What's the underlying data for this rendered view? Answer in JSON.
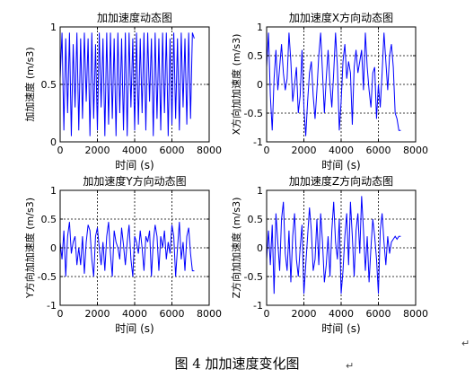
{
  "figure": {
    "caption": "图 4  加加速度变化图",
    "para_mark": "↵"
  },
  "chart_data": [
    {
      "type": "line",
      "title": "加加速度动态图",
      "xlabel": "时间 (s)",
      "ylabel": "加加速度 (m/s3)",
      "xlim": [
        0,
        8000
      ],
      "ylim": [
        0,
        1
      ],
      "xticks": [
        0,
        2000,
        4000,
        6000,
        8000
      ],
      "yticks": [
        0,
        0.5,
        1
      ],
      "tick_labels_x": [
        "0",
        "2000",
        "4000",
        "6000",
        "8000"
      ],
      "tick_labels_y": [
        "0",
        "0.5",
        "1"
      ],
      "grid": true,
      "line_color": "#0000ff",
      "series": [
        {
          "x": [
            0,
            100,
            200,
            300,
            400,
            500,
            600,
            700,
            800,
            900,
            1000,
            1100,
            1200,
            1300,
            1400,
            1500,
            1600,
            1700,
            1800,
            1900,
            2000,
            2100,
            2200,
            2300,
            2400,
            2500,
            2600,
            2700,
            2800,
            2900,
            3000,
            3100,
            3200,
            3300,
            3400,
            3500,
            3600,
            3700,
            3800,
            3900,
            4000,
            4100,
            4200,
            4300,
            4400,
            4500,
            4600,
            4700,
            4800,
            4900,
            5000,
            5100,
            5200,
            5300,
            5400,
            5500,
            5600,
            5700,
            5800,
            5900,
            6000,
            6100,
            6200,
            6300,
            6400,
            6500,
            6600,
            6700,
            6800,
            6900,
            7000,
            7100,
            7200
          ],
          "y": [
            0.55,
            0.95,
            0.1,
            0.9,
            0.25,
            0.95,
            0.05,
            0.85,
            0.3,
            0.95,
            0.1,
            0.9,
            0.2,
            0.95,
            0.35,
            0.9,
            0.05,
            0.95,
            0.2,
            0.85,
            0.1,
            0.95,
            0.3,
            0.9,
            0.05,
            0.95,
            0.15,
            0.95,
            0.2,
            0.9,
            0.05,
            0.95,
            0.25,
            0.9,
            0.1,
            0.95,
            0.05,
            0.95,
            0.3,
            0.9,
            0.1,
            0.95,
            0.15,
            0.9,
            0.25,
            0.95,
            0.1,
            0.95,
            0.35,
            0.9,
            0.05,
            0.95,
            0.2,
            0.9,
            0.1,
            0.95,
            0.25,
            0.95,
            0.05,
            0.9,
            0.15,
            0.95,
            0.2,
            0.9,
            0.1,
            0.95,
            0.3,
            0.9,
            0.15,
            0.95,
            0.2,
            0.95,
            0.9
          ]
        }
      ]
    },
    {
      "type": "line",
      "title": "加加速度X方向动态图",
      "xlabel": "时间 (s)",
      "ylabel": "X方向加加速度 (m/s3)",
      "xlim": [
        0,
        8000
      ],
      "ylim": [
        -1,
        1
      ],
      "xticks": [
        0,
        2000,
        4000,
        6000,
        8000
      ],
      "yticks": [
        -1,
        -0.5,
        0,
        0.5,
        1
      ],
      "tick_labels_x": [
        "0",
        "2000",
        "4000",
        "6000",
        "8000"
      ],
      "tick_labels_y": [
        "-1",
        "-0.5",
        "0",
        "0.5",
        "1"
      ],
      "grid": true,
      "line_color": "#0000ff",
      "series": [
        {
          "x": [
            0,
            100,
            200,
            300,
            400,
            500,
            600,
            700,
            800,
            900,
            1000,
            1100,
            1200,
            1300,
            1400,
            1500,
            1600,
            1700,
            1800,
            1900,
            2000,
            2100,
            2200,
            2300,
            2400,
            2500,
            2600,
            2700,
            2800,
            2900,
            3000,
            3100,
            3200,
            3300,
            3400,
            3500,
            3600,
            3700,
            3800,
            3900,
            4000,
            4100,
            4200,
            4300,
            4400,
            4500,
            4600,
            4700,
            4800,
            4900,
            5000,
            5100,
            5200,
            5300,
            5400,
            5500,
            5600,
            5700,
            5800,
            5900,
            6000,
            6100,
            6200,
            6300,
            6400,
            6500,
            6600,
            6700,
            6800,
            6900,
            7000,
            7100,
            7200
          ],
          "y": [
            0.3,
            0.9,
            -0.2,
            -0.8,
            0.1,
            0.6,
            -0.1,
            0.3,
            0.7,
            0.2,
            -0.1,
            0.1,
            0.9,
            0.4,
            -0.3,
            0.0,
            0.3,
            -0.5,
            -0.2,
            0.6,
            -0.4,
            -0.9,
            -0.3,
            0.2,
            0.4,
            -0.2,
            -0.6,
            -0.1,
            0.5,
            0.9,
            0.2,
            -0.5,
            0.1,
            0.6,
            0.0,
            -0.4,
            0.2,
            0.9,
            0.3,
            -0.8,
            -0.3,
            0.4,
            0.7,
            0.1,
            0.4,
            0.2,
            -0.7,
            0.3,
            0.6,
            0.2,
            0.4,
            0.6,
            -0.1,
            0.9,
            0.3,
            -0.1,
            -0.4,
            0.2,
            0.3,
            -0.6,
            0.0,
            -0.4,
            0.2,
            0.9,
            0.4,
            -0.1,
            0.5,
            0.7,
            0.3,
            -0.5,
            -0.6,
            -0.8,
            -0.8
          ]
        }
      ]
    },
    {
      "type": "line",
      "title": "加加速度Y方向动态图",
      "xlabel": "时间 (s)",
      "ylabel": "Y方向加加速度 (m/s3)",
      "xlim": [
        0,
        8000
      ],
      "ylim": [
        -1,
        1
      ],
      "xticks": [
        0,
        2000,
        4000,
        6000,
        8000
      ],
      "yticks": [
        -1,
        -0.5,
        0,
        0.5,
        1
      ],
      "tick_labels_x": [
        "0",
        "2000",
        "4000",
        "6000",
        "8000"
      ],
      "tick_labels_y": [
        "-1",
        "-0.5",
        "0",
        "0.5",
        "1"
      ],
      "grid": true,
      "line_color": "#0000ff",
      "series": [
        {
          "x": [
            0,
            100,
            200,
            300,
            400,
            500,
            600,
            700,
            800,
            900,
            1000,
            1100,
            1200,
            1300,
            1400,
            1500,
            1600,
            1700,
            1800,
            1900,
            2000,
            2100,
            2200,
            2300,
            2400,
            2500,
            2600,
            2700,
            2800,
            2900,
            3000,
            3100,
            3200,
            3300,
            3400,
            3500,
            3600,
            3700,
            3800,
            3900,
            4000,
            4100,
            4200,
            4300,
            4400,
            4500,
            4600,
            4700,
            4800,
            4900,
            5000,
            5100,
            5200,
            5300,
            5400,
            5500,
            5600,
            5700,
            5800,
            5900,
            6000,
            6100,
            6200,
            6300,
            6400,
            6500,
            6600,
            6700,
            6800,
            6900,
            7000,
            7100,
            7200
          ],
          "y": [
            0.1,
            -0.2,
            0.3,
            -0.5,
            0.2,
            0.45,
            -0.1,
            0.1,
            0.2,
            -0.3,
            0.0,
            -0.3,
            0.2,
            -0.45,
            0.1,
            0.4,
            0.3,
            -0.2,
            -0.5,
            0.2,
            0.35,
            0.0,
            -0.3,
            0.1,
            -0.4,
            0.2,
            0.45,
            -0.1,
            -0.5,
            0.3,
            0.1,
            0.0,
            -0.2,
            0.35,
            0.05,
            -0.3,
            0.1,
            0.4,
            -0.2,
            -0.5,
            0.2,
            0.1,
            -0.1,
            0.3,
            0.0,
            -0.4,
            0.2,
            0.1,
            0.3,
            -0.5,
            0.1,
            0.4,
            0.2,
            -0.4,
            0.2,
            0.0,
            0.3,
            -0.2,
            0.1,
            -0.1,
            0.4,
            0.2,
            -0.5,
            0.0,
            0.45,
            -0.2,
            0.1,
            -0.4,
            0.2,
            0.35,
            -0.1,
            -0.4,
            -0.4
          ]
        }
      ]
    },
    {
      "type": "line",
      "title": "加加速度Z方向动态图",
      "xlabel": "时间 (s)",
      "ylabel": "Z方向加加速度 (m/s3)",
      "xlim": [
        0,
        8000
      ],
      "ylim": [
        -1,
        1
      ],
      "xticks": [
        0,
        2000,
        4000,
        6000,
        8000
      ],
      "yticks": [
        -1,
        -0.5,
        0,
        0.5,
        1
      ],
      "tick_labels_x": [
        "0",
        "2000",
        "4000",
        "6000",
        "8000"
      ],
      "tick_labels_y": [
        "-1",
        "-0.5",
        "0",
        "0.5",
        "1"
      ],
      "grid": true,
      "line_color": "#0000ff",
      "series": [
        {
          "x": [
            0,
            100,
            200,
            300,
            400,
            500,
            600,
            700,
            800,
            900,
            1000,
            1100,
            1200,
            1300,
            1400,
            1500,
            1600,
            1700,
            1800,
            1900,
            2000,
            2100,
            2200,
            2300,
            2400,
            2500,
            2600,
            2700,
            2800,
            2900,
            3000,
            3100,
            3200,
            3300,
            3400,
            3500,
            3600,
            3700,
            3800,
            3900,
            4000,
            4100,
            4200,
            4300,
            4400,
            4500,
            4600,
            4700,
            4800,
            4900,
            5000,
            5100,
            5200,
            5300,
            5400,
            5500,
            5600,
            5700,
            5800,
            5900,
            6000,
            6100,
            6200,
            6300,
            6400,
            6500,
            6600,
            6700,
            6800,
            6900,
            7000,
            7100,
            7200
          ],
          "y": [
            -0.2,
            0.3,
            -0.3,
            0.4,
            -0.8,
            0.6,
            0.1,
            -0.4,
            0.5,
            0.8,
            -0.1,
            -0.4,
            0.3,
            -0.6,
            0.2,
            0.6,
            -0.2,
            -0.5,
            0.0,
            0.4,
            -0.8,
            -0.3,
            0.2,
            0.7,
            0.3,
            -0.4,
            -0.2,
            0.5,
            -0.3,
            0.6,
            0.1,
            -0.6,
            -0.3,
            0.2,
            -0.5,
            0.3,
            0.8,
            0.1,
            -0.2,
            0.5,
            -0.8,
            -0.4,
            0.2,
            0.6,
            -0.3,
            0.8,
            0.2,
            -0.5,
            0.3,
            0.6,
            -0.1,
            0.9,
            0.3,
            -0.4,
            0.2,
            -0.6,
            0.0,
            0.5,
            0.2,
            -0.2,
            -0.8,
            0.3,
            0.6,
            0.1,
            -0.3,
            0.2,
            -0.1,
            0.1,
            0.15,
            0.2,
            0.15,
            0.2,
            0.2
          ]
        }
      ]
    }
  ]
}
